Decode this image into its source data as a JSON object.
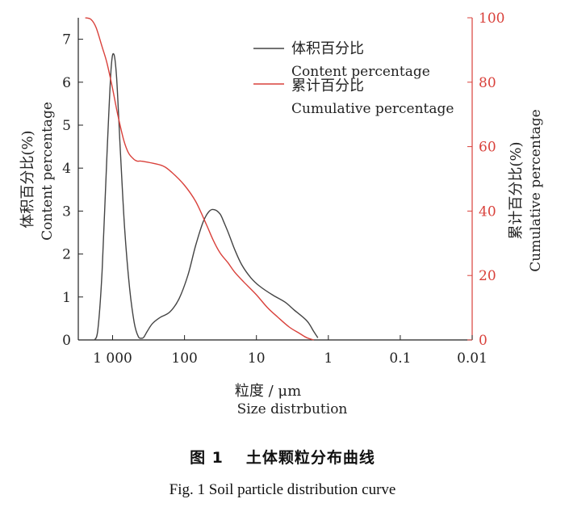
{
  "chart_data": {
    "type": "line",
    "xlabel_cn": "粒度 / μm",
    "xlabel_en": "Size distrbution",
    "x_scale": "log",
    "x_reversed": true,
    "xlim": [
      3000,
      0.01
    ],
    "x_ticks": [
      {
        "value": 1000,
        "label": "1 000"
      },
      {
        "value": 100,
        "label": "100"
      },
      {
        "value": 10,
        "label": "10"
      },
      {
        "value": 1,
        "label": "1"
      },
      {
        "value": 0.1,
        "label": "0.1"
      },
      {
        "value": 0.01,
        "label": "0.01"
      }
    ],
    "ylabel_left_cn": "体积百分比(%)",
    "ylabel_left_en": "Content percentage",
    "ylim_left": [
      0,
      7.5
    ],
    "y_left_ticks": [
      "0",
      "1",
      "2",
      "3",
      "4",
      "5",
      "6",
      "7"
    ],
    "ylabel_right_cn": "累计百分比(%)",
    "ylabel_right_en": "Cumulative percentage",
    "ylim_right": [
      0,
      100
    ],
    "y_right_ticks": [
      "0",
      "20",
      "40",
      "60",
      "80",
      "100"
    ],
    "grid": false,
    "legend_position": "top-right",
    "series": [
      {
        "name_cn": "体积百分比",
        "name_en": "Content percentage",
        "axis": "left",
        "color": "#444444",
        "x": [
          1780,
          1600,
          1400,
          1200,
          1050,
          960,
          880,
          780,
          680,
          580,
          500,
          440,
          400,
          370,
          330,
          280,
          220,
          160,
          120,
          90,
          70,
          55,
          45,
          38,
          32,
          28,
          24,
          20,
          16,
          12,
          9,
          6,
          4,
          3,
          2,
          1.6,
          1.4
        ],
        "y": [
          0,
          0.25,
          1.6,
          4.3,
          6.3,
          6.65,
          6.1,
          4.4,
          2.6,
          1.2,
          0.4,
          0.08,
          0.04,
          0.06,
          0.2,
          0.38,
          0.52,
          0.65,
          0.95,
          1.5,
          2.2,
          2.75,
          3.0,
          3.03,
          2.93,
          2.72,
          2.45,
          2.1,
          1.75,
          1.45,
          1.25,
          1.05,
          0.88,
          0.7,
          0.45,
          0.2,
          0.05
        ]
      },
      {
        "name_cn": "累计百分比",
        "name_en": "Cumulative percentage",
        "axis": "right",
        "color": "#d9413b",
        "x": [
          2400,
          2000,
          1700,
          1400,
          1200,
          1000,
          850,
          700,
          600,
          500,
          450,
          400,
          300,
          200,
          150,
          100,
          70,
          50,
          40,
          32,
          25,
          20,
          15,
          10,
          7,
          5,
          3.5,
          2.5,
          2,
          1.6
        ],
        "y": [
          100,
          99.5,
          97,
          91,
          86,
          78,
          70,
          62,
          58,
          56,
          55.5,
          55.5,
          55,
          54,
          52,
          48,
          43,
          36,
          31,
          27,
          24,
          21,
          18,
          14,
          10,
          7,
          4,
          2,
          0.7,
          0
        ]
      }
    ]
  },
  "caption": {
    "cn_number": "图 1",
    "cn_title": "土体颗粒分布曲线",
    "en": "Fig. 1 Soil particle distribution curve"
  }
}
